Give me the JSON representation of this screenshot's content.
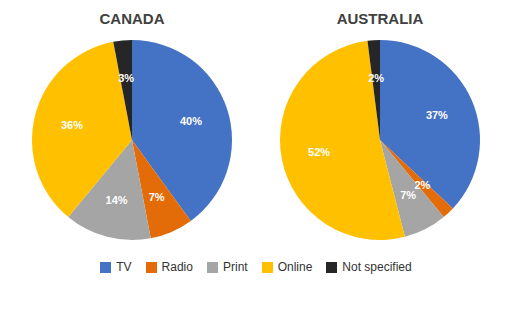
{
  "chart_data": [
    {
      "type": "pie",
      "title": "CANADA",
      "categories": [
        "TV",
        "Radio",
        "Print",
        "Online",
        "Not specified"
      ],
      "values": [
        40,
        7,
        14,
        36,
        3
      ],
      "value_labels": [
        "40%",
        "7%",
        "14%",
        "36%",
        "3%"
      ],
      "colors": [
        "#4472C4",
        "#E36C09",
        "#A5A5A5",
        "#FFC000",
        "#262626"
      ],
      "data_labels": true,
      "legend": "bottom"
    },
    {
      "type": "pie",
      "title": "AUSTRALIA",
      "categories": [
        "TV",
        "Radio",
        "Print",
        "Online",
        "Not specified"
      ],
      "values": [
        37,
        2,
        7,
        52,
        2
      ],
      "value_labels": [
        "37%",
        "2%",
        "7%",
        "52%",
        "2%"
      ],
      "colors": [
        "#4472C4",
        "#E36C09",
        "#A5A5A5",
        "#FFC000",
        "#262626"
      ],
      "data_labels": true,
      "legend": "bottom"
    }
  ]
}
